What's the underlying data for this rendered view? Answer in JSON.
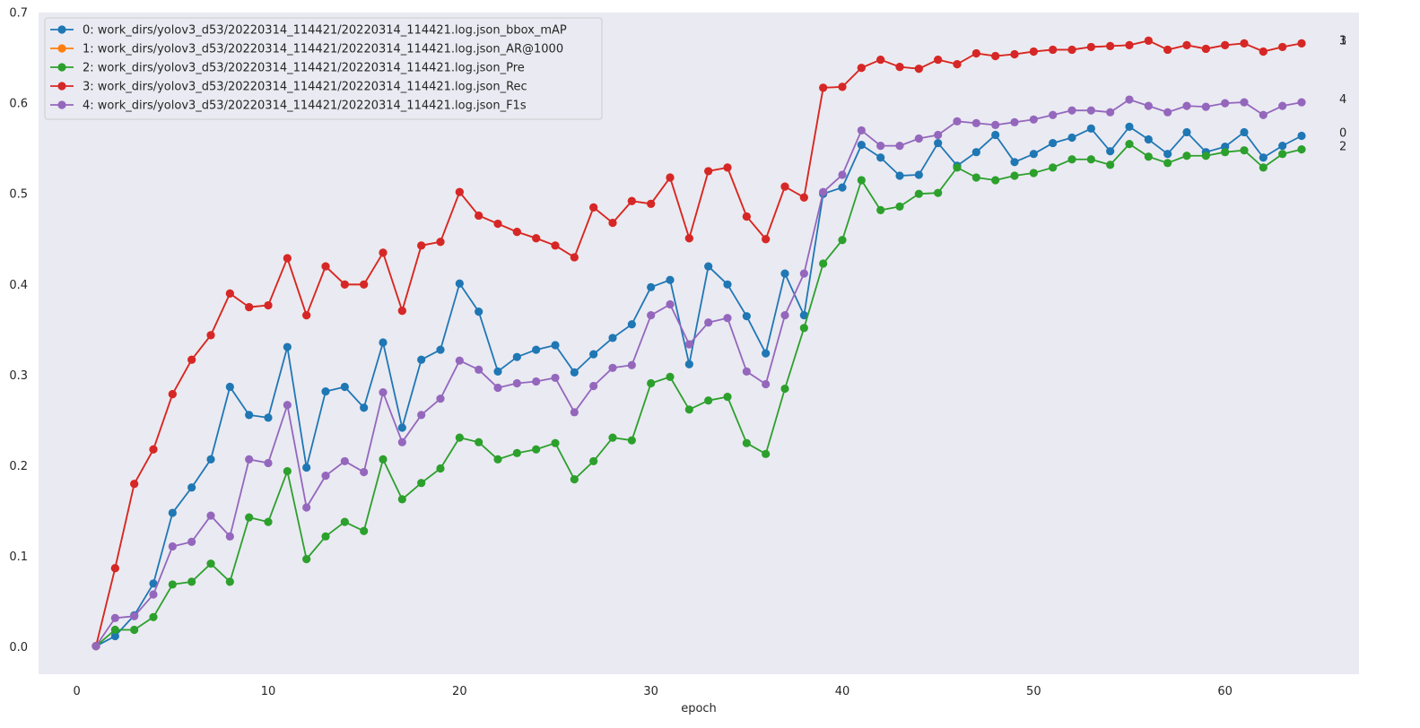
{
  "chart_data": {
    "type": "line",
    "xlabel": "epoch",
    "ylabel": "",
    "xlim": [
      -2,
      67
    ],
    "ylim": [
      -0.03,
      0.7
    ],
    "xticks": [
      0,
      10,
      20,
      30,
      40,
      50,
      60
    ],
    "yticks": [
      0.0,
      0.1,
      0.2,
      0.3,
      0.4,
      0.5,
      0.6,
      0.7
    ],
    "grid": false,
    "legend_position": "top-left",
    "background_color": "#eaeaf2",
    "x": [
      1,
      2,
      3,
      4,
      5,
      6,
      7,
      8,
      9,
      10,
      11,
      12,
      13,
      14,
      15,
      16,
      17,
      18,
      19,
      20,
      21,
      22,
      23,
      24,
      25,
      26,
      27,
      28,
      29,
      30,
      31,
      32,
      33,
      34,
      35,
      36,
      37,
      38,
      39,
      40,
      41,
      42,
      43,
      44,
      45,
      46,
      47,
      48,
      49,
      50,
      51,
      52,
      53,
      54,
      55,
      56,
      57,
      58,
      59,
      60,
      61,
      62,
      63,
      64
    ],
    "series": [
      {
        "name": "0: work_dirs/yolov3_d53/20220314_114421/20220314_114421.log.json_bbox_mAP",
        "end_label": "0",
        "color": "#1f77b4",
        "values": [
          0.001,
          0.012,
          0.035,
          0.07,
          0.148,
          0.176,
          0.207,
          0.287,
          0.256,
          0.253,
          0.331,
          0.198,
          0.282,
          0.287,
          0.264,
          0.336,
          0.242,
          0.317,
          0.328,
          0.401,
          0.37,
          0.304,
          0.32,
          0.328,
          0.333,
          0.303,
          0.323,
          0.341,
          0.356,
          0.397,
          0.405,
          0.312,
          0.42,
          0.4,
          0.365,
          0.324,
          0.412,
          0.366,
          0.5,
          0.507,
          0.554,
          0.54,
          0.52,
          0.521,
          0.556,
          0.531,
          0.546,
          0.565,
          0.535,
          0.544,
          0.556,
          0.562,
          0.572,
          0.547,
          0.574,
          0.56,
          0.544,
          0.568,
          0.546,
          0.552,
          0.568,
          0.54,
          0.553,
          0.564
        ]
      },
      {
        "name": "1: work_dirs/yolov3_d53/20220314_114421/20220314_114421.log.json_AR@1000",
        "end_label": "1",
        "color": "#ff7f0e",
        "values": [
          0.001,
          0.087,
          0.18,
          0.218,
          0.279,
          0.317,
          0.344,
          0.39,
          0.375,
          0.377,
          0.429,
          0.366,
          0.42,
          0.4,
          0.4,
          0.435,
          0.371,
          0.443,
          0.447,
          0.502,
          0.476,
          0.467,
          0.458,
          0.451,
          0.443,
          0.43,
          0.485,
          0.468,
          0.492,
          0.489,
          0.518,
          0.451,
          0.525,
          0.529,
          0.475,
          0.45,
          0.508,
          0.496,
          0.617,
          0.618,
          0.639,
          0.648,
          0.64,
          0.638,
          0.648,
          0.643,
          0.655,
          0.652,
          0.654,
          0.657,
          0.659,
          0.659,
          0.662,
          0.663,
          0.664,
          0.669,
          0.659,
          0.664,
          0.66,
          0.664,
          0.666,
          0.657,
          0.662,
          0.666
        ]
      },
      {
        "name": "2: work_dirs/yolov3_d53/20220314_114421/20220314_114421.log.json_Pre",
        "end_label": "2",
        "color": "#2ca02c",
        "values": [
          0.001,
          0.019,
          0.019,
          0.033,
          0.069,
          0.072,
          0.092,
          0.072,
          0.143,
          0.138,
          0.194,
          0.097,
          0.122,
          0.138,
          0.128,
          0.207,
          0.163,
          0.181,
          0.197,
          0.231,
          0.226,
          0.207,
          0.214,
          0.218,
          0.225,
          0.185,
          0.205,
          0.231,
          0.228,
          0.291,
          0.298,
          0.262,
          0.272,
          0.276,
          0.225,
          0.213,
          0.285,
          0.352,
          0.423,
          0.449,
          0.515,
          0.482,
          0.486,
          0.5,
          0.501,
          0.529,
          0.518,
          0.515,
          0.52,
          0.523,
          0.529,
          0.538,
          0.538,
          0.532,
          0.555,
          0.541,
          0.534,
          0.542,
          0.542,
          0.546,
          0.548,
          0.529,
          0.544,
          0.549
        ]
      },
      {
        "name": "3: work_dirs/yolov3_d53/20220314_114421/20220314_114421.log.json_Rec",
        "end_label": "3",
        "color": "#d62728",
        "values": [
          0.001,
          0.087,
          0.18,
          0.218,
          0.279,
          0.317,
          0.344,
          0.39,
          0.375,
          0.377,
          0.429,
          0.366,
          0.42,
          0.4,
          0.4,
          0.435,
          0.371,
          0.443,
          0.447,
          0.502,
          0.476,
          0.467,
          0.458,
          0.451,
          0.443,
          0.43,
          0.485,
          0.468,
          0.492,
          0.489,
          0.518,
          0.451,
          0.525,
          0.529,
          0.475,
          0.45,
          0.508,
          0.496,
          0.617,
          0.618,
          0.639,
          0.648,
          0.64,
          0.638,
          0.648,
          0.643,
          0.655,
          0.652,
          0.654,
          0.657,
          0.659,
          0.659,
          0.662,
          0.663,
          0.664,
          0.669,
          0.659,
          0.664,
          0.66,
          0.664,
          0.666,
          0.657,
          0.662,
          0.666
        ]
      },
      {
        "name": "4: work_dirs/yolov3_d53/20220314_114421/20220314_114421.log.json_F1s",
        "end_label": "4",
        "color": "#9467bd",
        "values": [
          0.001,
          0.032,
          0.034,
          0.058,
          0.111,
          0.116,
          0.145,
          0.122,
          0.207,
          0.203,
          0.267,
          0.154,
          0.189,
          0.205,
          0.193,
          0.281,
          0.226,
          0.256,
          0.274,
          0.316,
          0.306,
          0.286,
          0.291,
          0.293,
          0.297,
          0.259,
          0.288,
          0.308,
          0.311,
          0.366,
          0.378,
          0.334,
          0.358,
          0.363,
          0.304,
          0.29,
          0.366,
          0.412,
          0.502,
          0.521,
          0.57,
          0.553,
          0.553,
          0.561,
          0.565,
          0.58,
          0.578,
          0.576,
          0.579,
          0.582,
          0.587,
          0.592,
          0.592,
          0.59,
          0.604,
          0.597,
          0.59,
          0.597,
          0.596,
          0.6,
          0.601,
          0.587,
          0.597,
          0.601
        ]
      }
    ]
  }
}
